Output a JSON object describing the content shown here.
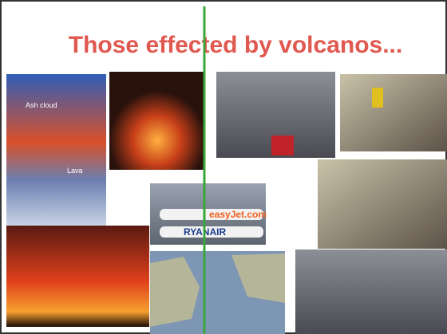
{
  "slide": {
    "title": "Those effected by volcanos...",
    "photo_labels": {
      "ash_cloud": "Ash cloud",
      "lava": "Lava",
      "easyjet": "easyJet.com",
      "ryanair": "RYANAIR"
    }
  }
}
